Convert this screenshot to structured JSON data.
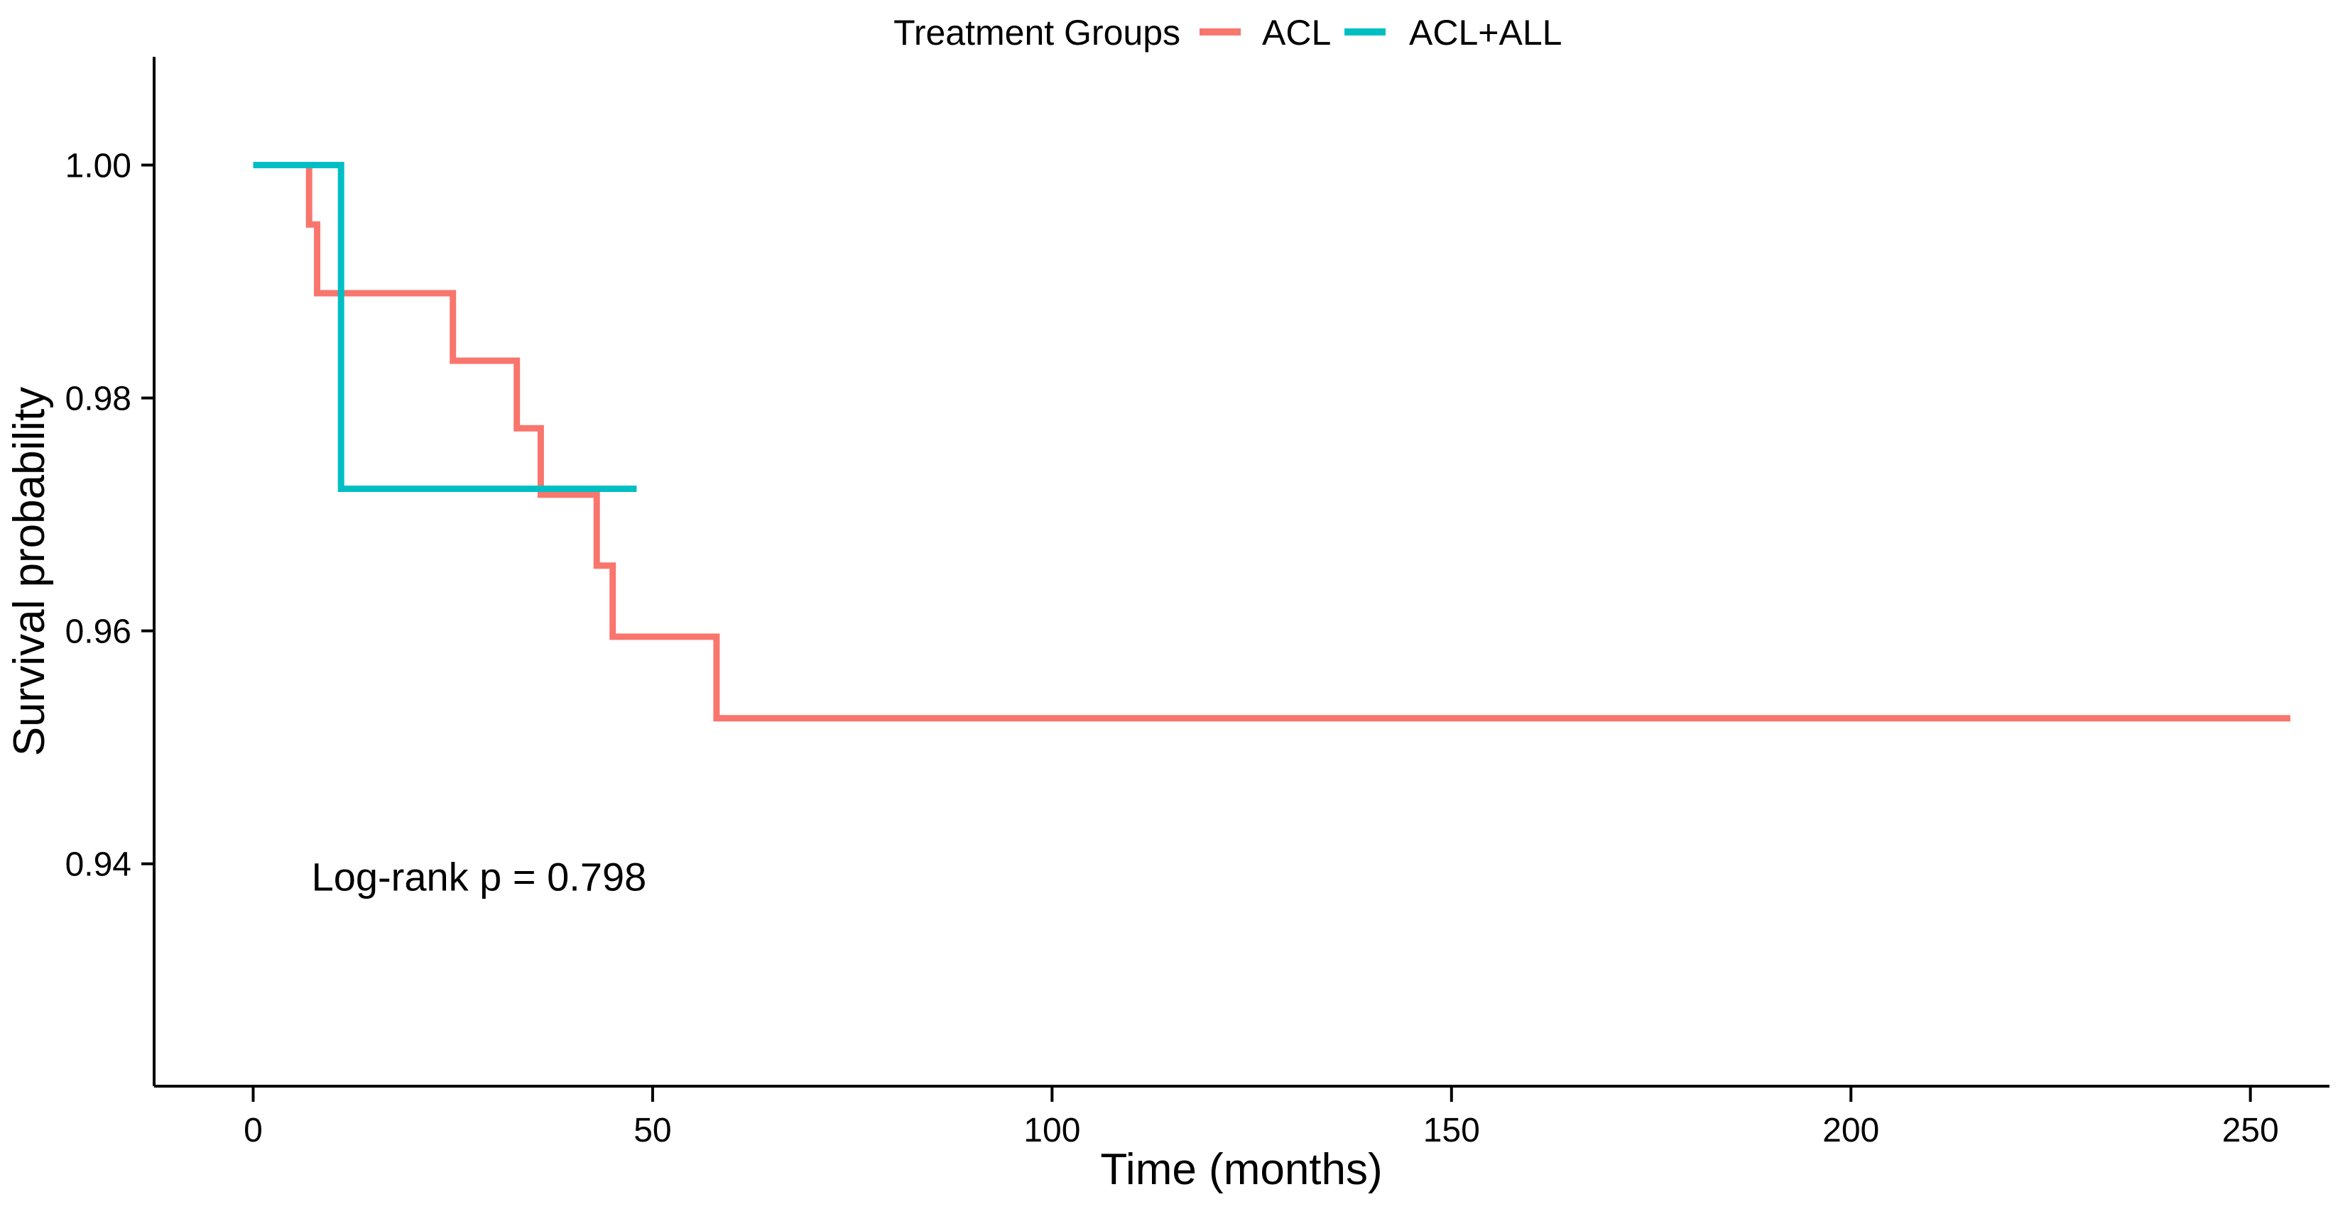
{
  "figure": {
    "background": "#ffffff",
    "text_color": "#000000"
  },
  "chart_data": {
    "type": "line",
    "subtype": "kaplan-meier-step",
    "title": "",
    "xlabel": "Time (months)",
    "ylabel": "Survival probability",
    "x_ticks": [
      0,
      50,
      100,
      150,
      200,
      250
    ],
    "y_ticks": [
      "1.00",
      "0.98",
      "0.96",
      "0.94"
    ],
    "y_tick_values": [
      1.0,
      0.98,
      0.96,
      0.94
    ],
    "xlim": [
      -12.4,
      259.9
    ],
    "ylim": [
      0.9209,
      1.0093
    ],
    "grid": false,
    "legend_position": "top-center",
    "legend_title": "Treatment Groups",
    "series": [
      {
        "name": "ACL",
        "color": "#F8766D",
        "start": [
          0,
          1.0
        ],
        "steps": [
          [
            7,
            0.9949
          ],
          [
            8,
            0.989
          ],
          [
            25,
            0.9832
          ],
          [
            33,
            0.9774
          ],
          [
            36,
            0.9717
          ],
          [
            43,
            0.9656
          ],
          [
            45,
            0.9595
          ],
          [
            58,
            0.9525
          ]
        ],
        "end_time": 255
      },
      {
        "name": "ACL+ALL",
        "color": "#00BFC4",
        "start": [
          0,
          1.0
        ],
        "steps": [
          [
            11,
            0.9722
          ]
        ],
        "end_time": 48
      }
    ],
    "annotation": {
      "text": "Log-rank p = 0.798",
      "x": 7.3,
      "y": 0.9377
    }
  }
}
